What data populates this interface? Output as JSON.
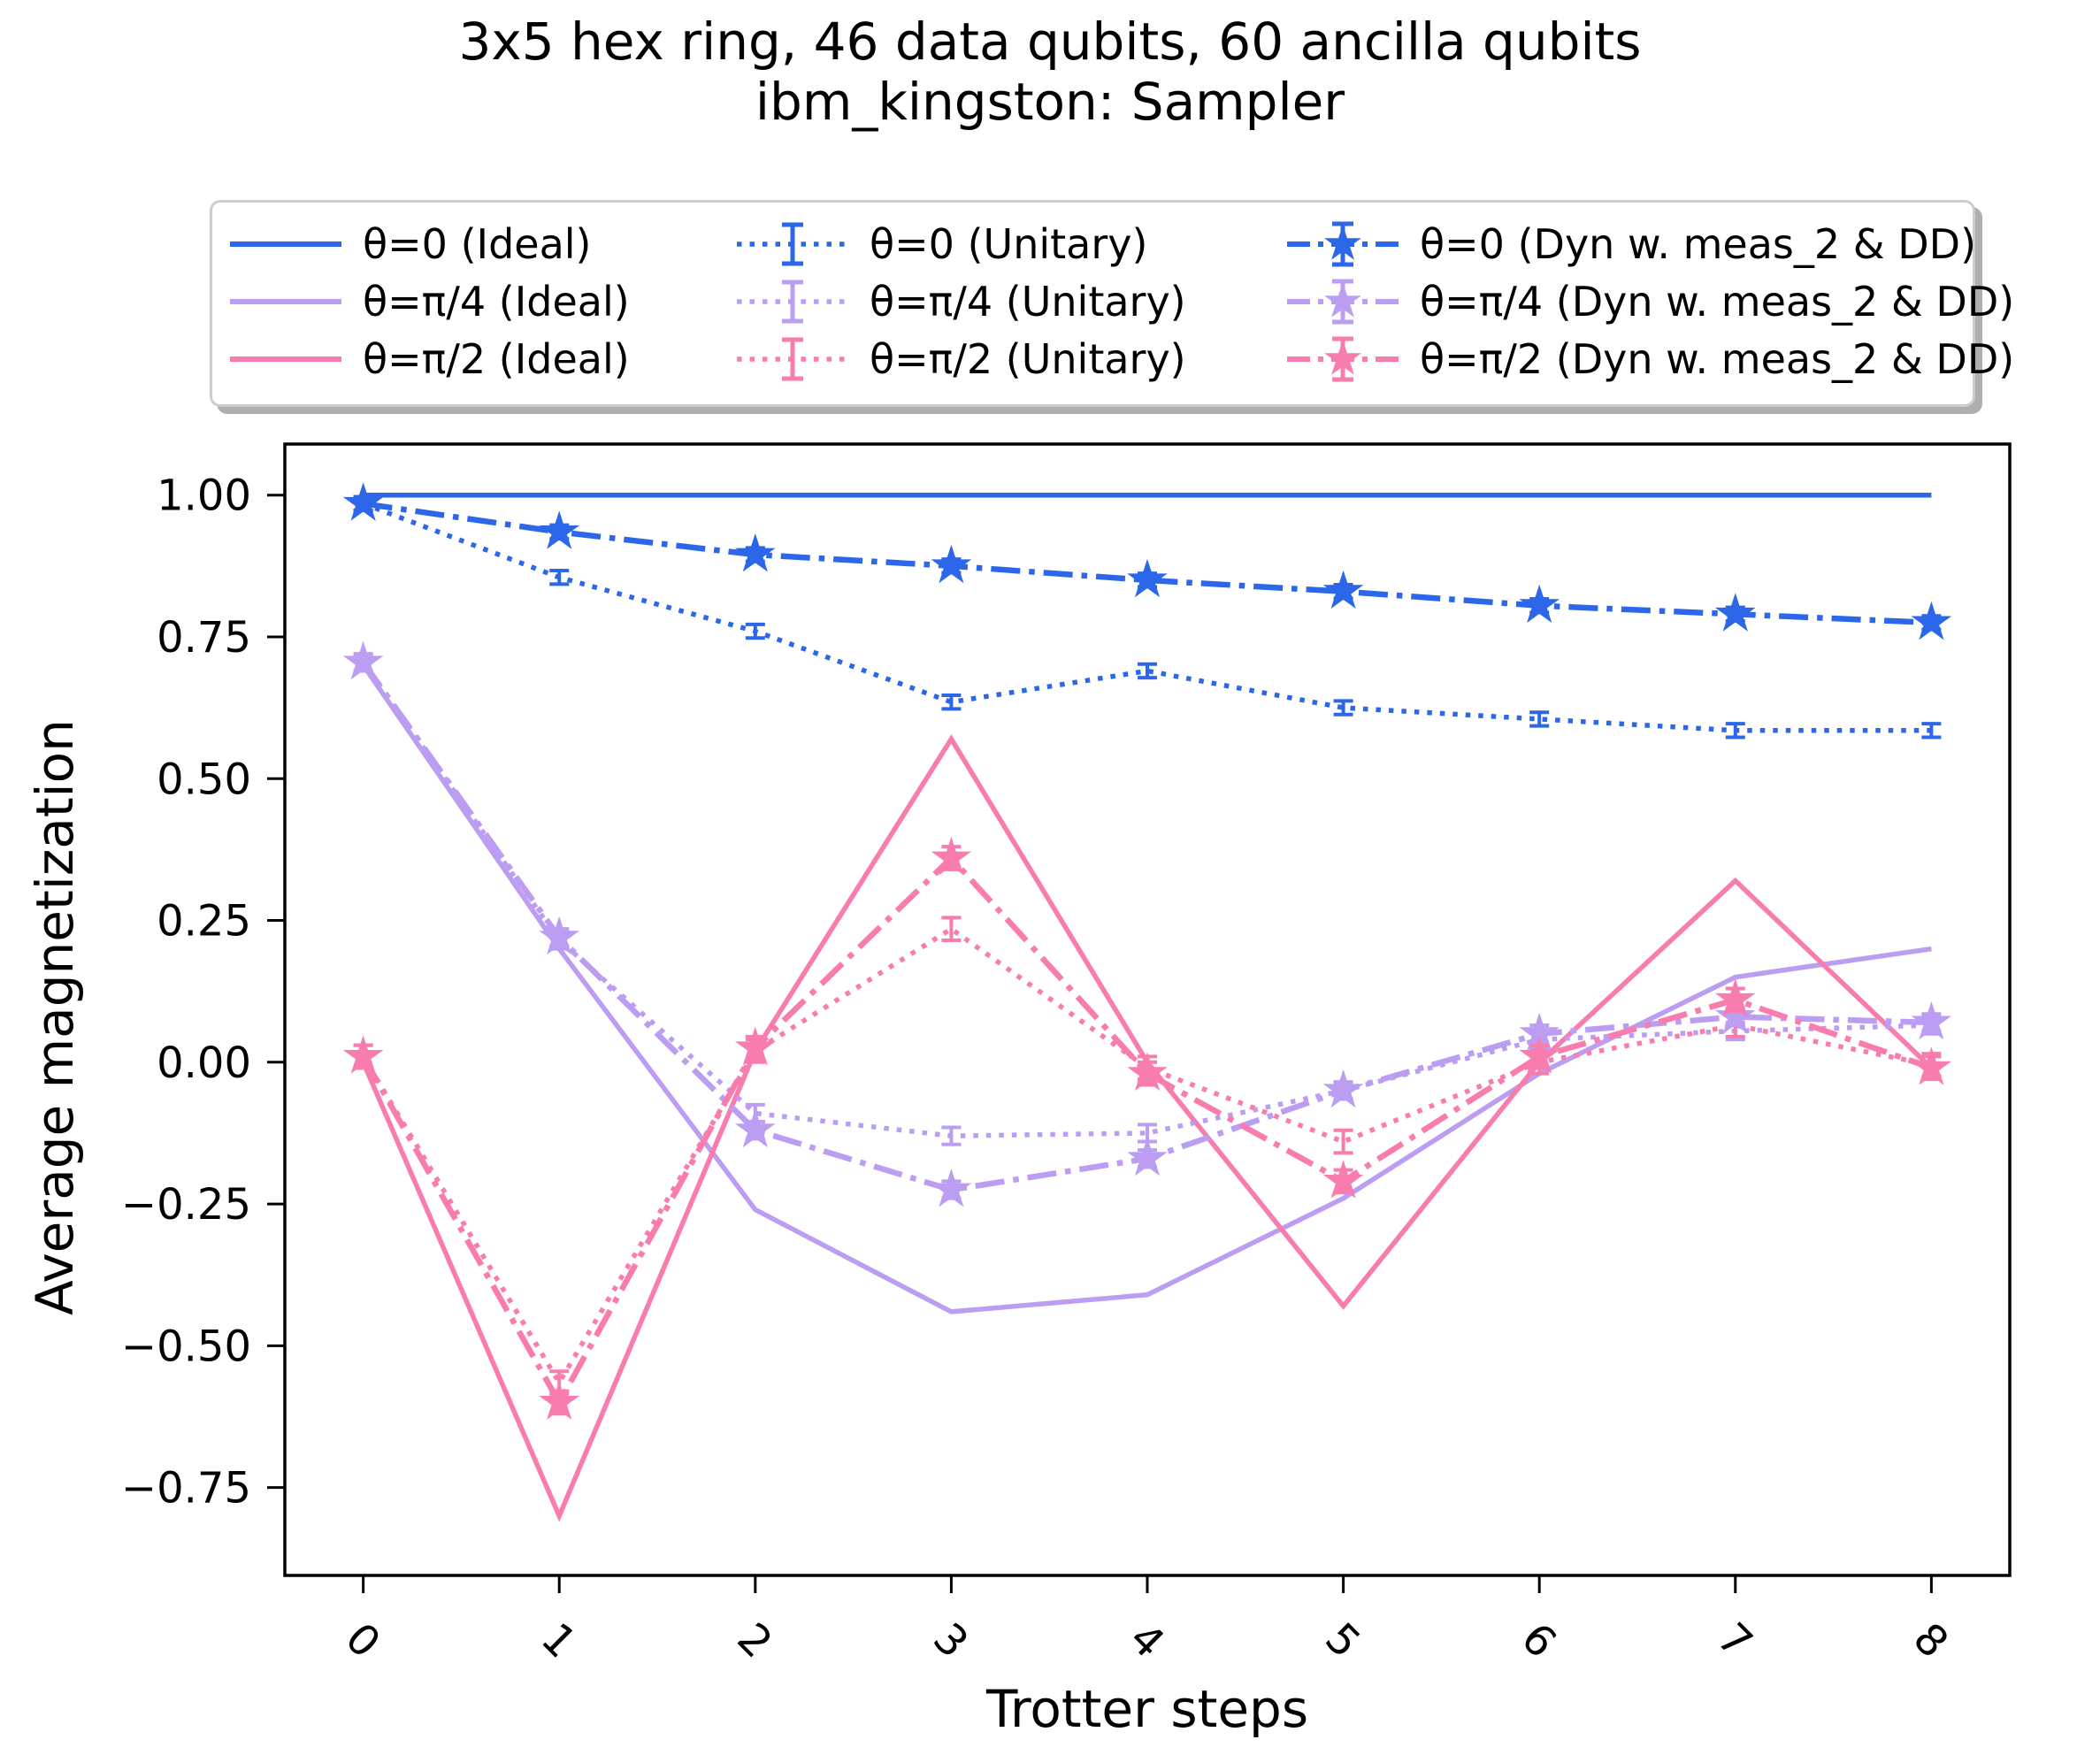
{
  "figure": {
    "title_line1": "3x5 hex ring, 46 data qubits, 60 ancilla qubits",
    "title_line2": "ibm_kingston: Sampler",
    "xlabel": "Trotter steps",
    "ylabel": "Average magnetization"
  },
  "colors": {
    "blue": "#2b67e8",
    "purple": "#bb9df2",
    "pink": "#f97cae",
    "axis": "#000000",
    "legend_border": "#cdcdcd"
  },
  "legend": {
    "entries": [
      {
        "label": "θ=0 (Ideal)",
        "color": "blue",
        "style": "solid"
      },
      {
        "label": "θ=π/4 (Ideal)",
        "color": "purple",
        "style": "solid"
      },
      {
        "label": "θ=π/2 (Ideal)",
        "color": "pink",
        "style": "solid"
      },
      {
        "label": "θ=0 (Unitary)",
        "color": "blue",
        "style": "dotted-errorbar"
      },
      {
        "label": "θ=π/4 (Unitary)",
        "color": "purple",
        "style": "dotted-errorbar"
      },
      {
        "label": "θ=π/2 (Unitary)",
        "color": "pink",
        "style": "dotted-errorbar"
      },
      {
        "label": "θ=0 (Dyn w. meas_2 & DD)",
        "color": "blue",
        "style": "dashdot-star"
      },
      {
        "label": "θ=π/4 (Dyn w. meas_2 & DD)",
        "color": "purple",
        "style": "dashdot-star"
      },
      {
        "label": "θ=π/2 (Dyn w. meas_2 & DD)",
        "color": "pink",
        "style": "dashdot-star"
      }
    ]
  },
  "chart_data": {
    "type": "line",
    "title": "3x5 hex ring, 46 data qubits, 60 ancilla qubits — ibm_kingston: Sampler",
    "xlabel": "Trotter steps",
    "ylabel": "Average magnetization",
    "x": [
      0,
      1,
      2,
      3,
      4,
      5,
      6,
      7,
      8
    ],
    "xlim": [
      -0.4,
      8.4
    ],
    "ylim": [
      -0.905,
      1.09
    ],
    "grid": false,
    "legend_position": "top",
    "xticks": {
      "values": [
        0,
        1,
        2,
        3,
        4,
        5,
        6,
        7,
        8
      ],
      "labels": [
        "0",
        "1",
        "2",
        "3",
        "4",
        "5",
        "6",
        "7",
        "8"
      ]
    },
    "yticks": {
      "values": [
        1.0,
        0.75,
        0.5,
        0.25,
        0.0,
        -0.25,
        -0.5,
        -0.75
      ],
      "labels": [
        "1.00",
        "0.75",
        "0.50",
        "0.25",
        "0.00",
        "−0.25",
        "−0.50",
        "−0.75"
      ]
    },
    "series": [
      {
        "id": "theta0-ideal",
        "name": "θ=0 (Ideal)",
        "color": "blue",
        "line": "solid",
        "marker": "none",
        "values": [
          1.0,
          1.0,
          1.0,
          1.0,
          1.0,
          1.0,
          1.0,
          1.0,
          1.0
        ],
        "yerr": 0
      },
      {
        "id": "thetapi4-ideal",
        "name": "θ=π/4 (Ideal)",
        "color": "purple",
        "line": "solid",
        "marker": "none",
        "values": [
          0.7,
          0.2,
          -0.26,
          -0.44,
          -0.41,
          -0.24,
          -0.02,
          0.15,
          0.2
        ],
        "yerr": 0
      },
      {
        "id": "thetapi2-ideal",
        "name": "θ=π/2 (Ideal)",
        "color": "pink",
        "line": "solid",
        "marker": "none",
        "values": [
          0.0,
          -0.8,
          0.02,
          0.57,
          0.0,
          -0.43,
          0.0,
          0.32,
          -0.01
        ],
        "yerr": 0
      },
      {
        "id": "theta0-unitary",
        "name": "θ=0 (Unitary)",
        "color": "blue",
        "line": "dotted",
        "marker": "none",
        "values": [
          0.985,
          0.855,
          0.76,
          0.635,
          0.69,
          0.625,
          0.605,
          0.585,
          0.585
        ],
        "yerr": 0.012
      },
      {
        "id": "thetapi4-unitary",
        "name": "θ=π/4 (Unitary)",
        "color": "purple",
        "line": "dotted",
        "marker": "none",
        "values": [
          0.705,
          0.215,
          -0.09,
          -0.13,
          -0.125,
          -0.05,
          0.04,
          0.055,
          0.065
        ],
        "yerr": 0.015
      },
      {
        "id": "thetapi2-unitary",
        "name": "θ=π/2 (Unitary)",
        "color": "pink",
        "line": "dotted",
        "marker": "none",
        "values": [
          0.01,
          -0.565,
          0.02,
          0.235,
          -0.01,
          -0.14,
          0.0,
          0.065,
          -0.005
        ],
        "yerr": 0.02
      },
      {
        "id": "theta0-dyn",
        "name": "θ=0 (Dyn w. meas_2 & DD)",
        "color": "blue",
        "line": "dashdot",
        "marker": "star",
        "values": [
          0.985,
          0.935,
          0.895,
          0.875,
          0.85,
          0.83,
          0.805,
          0.79,
          0.775
        ],
        "yerr": 0.012
      },
      {
        "id": "thetapi4-dyn",
        "name": "θ=π/4 (Dyn w. meas_2 & DD)",
        "color": "purple",
        "line": "dashdot",
        "marker": "star",
        "values": [
          0.705,
          0.22,
          -0.12,
          -0.225,
          -0.17,
          -0.05,
          0.05,
          0.08,
          0.07
        ],
        "yerr": 0.015
      },
      {
        "id": "thetapi2-dyn",
        "name": "θ=π/2 (Dyn w. meas_2 & DD)",
        "color": "pink",
        "line": "dashdot",
        "marker": "star",
        "values": [
          0.01,
          -0.6,
          0.025,
          0.36,
          -0.02,
          -0.21,
          0.01,
          0.11,
          -0.01
        ],
        "yerr": 0.02
      }
    ]
  }
}
